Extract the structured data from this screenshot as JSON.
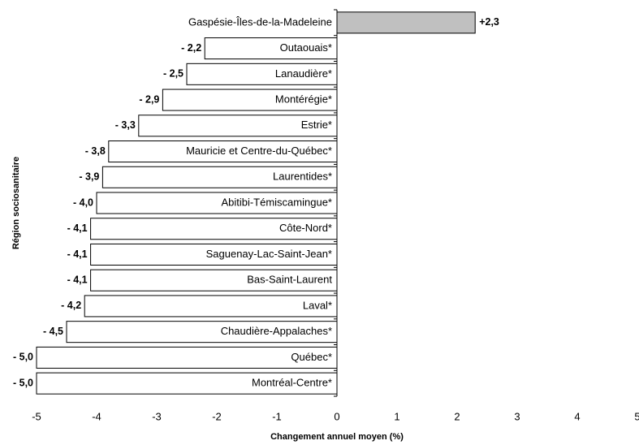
{
  "chart_data": {
    "type": "hbar",
    "categories": [
      "Gaspésie-Îles-de-la-Madeleine",
      "Outaouais*",
      "Lanaudière*",
      "Montérégie*",
      "Estrie*",
      "Mauricie et Centre-du-Québec*",
      "Laurentides*",
      "Abitibi-Témiscamingue*",
      "Côte-Nord*",
      "Saguenay-Lac-Saint-Jean*",
      "Bas-Saint-Laurent",
      "Laval*",
      "Chaudière-Appalaches*",
      "Québec*",
      "Montréal-Centre*"
    ],
    "values": [
      2.3,
      -2.2,
      -2.5,
      -2.9,
      -3.3,
      -3.8,
      -3.9,
      -4.0,
      -4.1,
      -4.1,
      -4.1,
      -4.2,
      -4.5,
      -5.0,
      -5.0
    ],
    "value_labels": [
      "+2,3",
      "- 2,2",
      "- 2,5",
      "- 2,9",
      "- 3,3",
      "- 3,8",
      "- 3,9",
      "- 4,0",
      "- 4,1",
      "- 4,1",
      "- 4,1",
      "- 4,2",
      "- 4,5",
      "- 5,0",
      "- 5,0"
    ],
    "colors": [
      "#c0c0c0",
      "#ffffff",
      "#ffffff",
      "#ffffff",
      "#ffffff",
      "#ffffff",
      "#ffffff",
      "#ffffff",
      "#ffffff",
      "#ffffff",
      "#ffffff",
      "#ffffff",
      "#ffffff",
      "#ffffff",
      "#ffffff"
    ],
    "xlim": [
      -5,
      5
    ],
    "xticks": [
      -5,
      -4,
      -3,
      -2,
      -1,
      0,
      1,
      2,
      3,
      4,
      5
    ],
    "xlabel": "Changement annuel moyen (%)",
    "ylabel": "Région sociosanitaire"
  }
}
